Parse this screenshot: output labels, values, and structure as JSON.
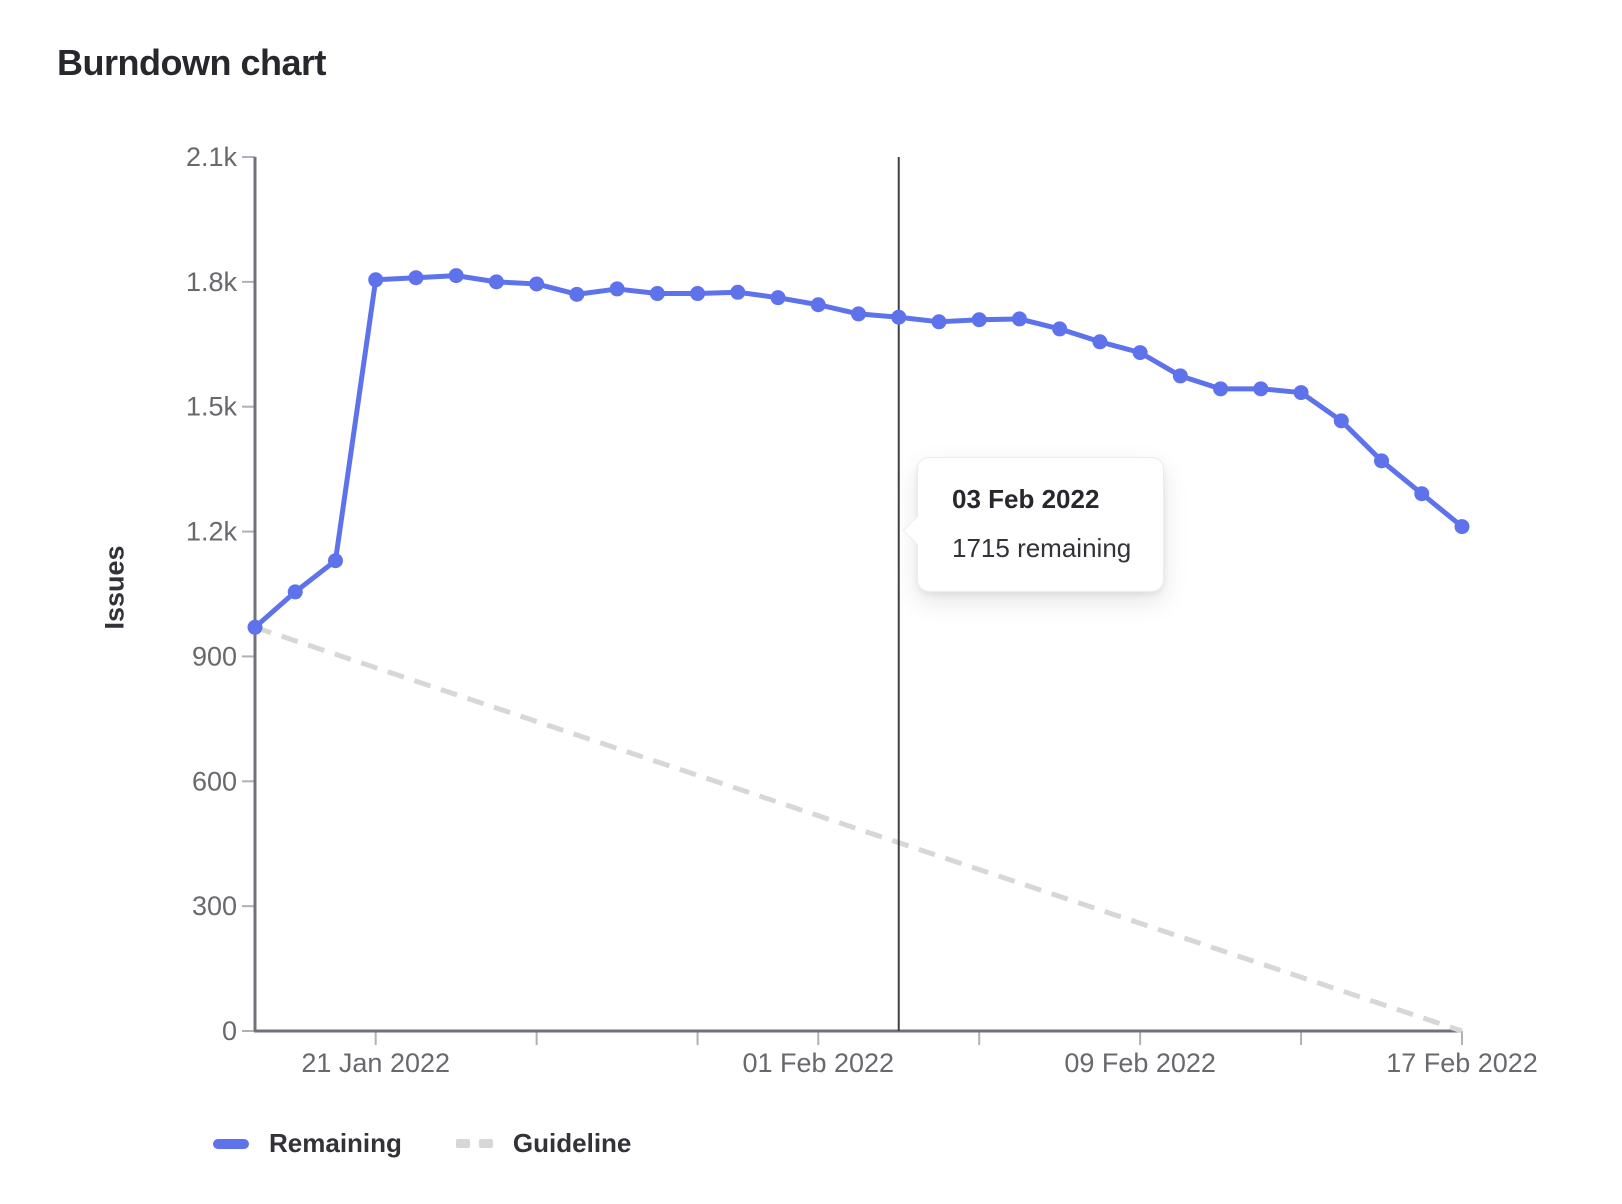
{
  "title": "Burndown chart",
  "colors": {
    "remaining": "#5d72eb",
    "guideline": "#d7d7d7",
    "axis": "#71717a",
    "tick": "#b0b0b8",
    "tick_label": "#68686d",
    "today_line": "#404046",
    "text_dark": "#333238"
  },
  "tooltip": {
    "title": "03 Feb 2022",
    "body": "1715 remaining"
  },
  "legend": {
    "items": [
      {
        "label": "Remaining",
        "swatch": "solid-blue"
      },
      {
        "label": "Guideline",
        "swatch": "dashed-gray"
      }
    ]
  },
  "chart_data": {
    "type": "line",
    "title": "Burndown chart",
    "xlabel": "",
    "ylabel": "Issues",
    "ylim": [
      0,
      2100
    ],
    "y_tick_step": 300,
    "y_tick_labels": [
      "0",
      "300",
      "600",
      "900",
      "1.2k",
      "1.5k",
      "1.8k",
      "2.1k"
    ],
    "grid": false,
    "legend_position": "bottom-left",
    "x_axis_labels": [
      {
        "day": 3,
        "label": "21 Jan 2022"
      },
      {
        "day": 14,
        "label": "01 Feb 2022"
      },
      {
        "day": 22,
        "label": "09 Feb 2022"
      },
      {
        "day": 30,
        "label": "17 Feb 2022"
      }
    ],
    "x_tick_days": [
      3,
      7,
      11,
      14,
      18,
      22,
      26,
      30
    ],
    "today_line": {
      "day": 16,
      "date": "03 Feb 2022",
      "value": 1715
    },
    "series": [
      {
        "name": "Remaining",
        "style": "solid",
        "color": "#5d72eb",
        "dates": [
          "2022-01-18",
          "2022-01-19",
          "2022-01-20",
          "2022-01-21",
          "2022-01-22",
          "2022-01-23",
          "2022-01-24",
          "2022-01-25",
          "2022-01-26",
          "2022-01-27",
          "2022-01-28",
          "2022-01-29",
          "2022-01-30",
          "2022-01-31",
          "2022-02-01",
          "2022-02-02",
          "2022-02-03",
          "2022-02-04",
          "2022-02-05",
          "2022-02-06",
          "2022-02-07",
          "2022-02-08",
          "2022-02-09",
          "2022-02-10",
          "2022-02-11",
          "2022-02-12",
          "2022-02-13",
          "2022-02-14",
          "2022-02-15",
          "2022-02-16",
          "2022-02-17"
        ],
        "values": [
          970,
          1055,
          1130,
          1805,
          1810,
          1815,
          1800,
          1795,
          1770,
          1783,
          1772,
          1772,
          1775,
          1762,
          1745,
          1723,
          1715,
          1704,
          1709,
          1711,
          1687,
          1656,
          1630,
          1574,
          1543,
          1543,
          1534,
          1466,
          1370,
          1291,
          1212
        ]
      },
      {
        "name": "Guideline",
        "style": "dashed",
        "color": "#d7d7d7",
        "days": [
          0,
          30
        ],
        "dates": [
          "2022-01-18",
          "2022-02-17"
        ],
        "values": [
          970,
          0
        ]
      }
    ]
  }
}
